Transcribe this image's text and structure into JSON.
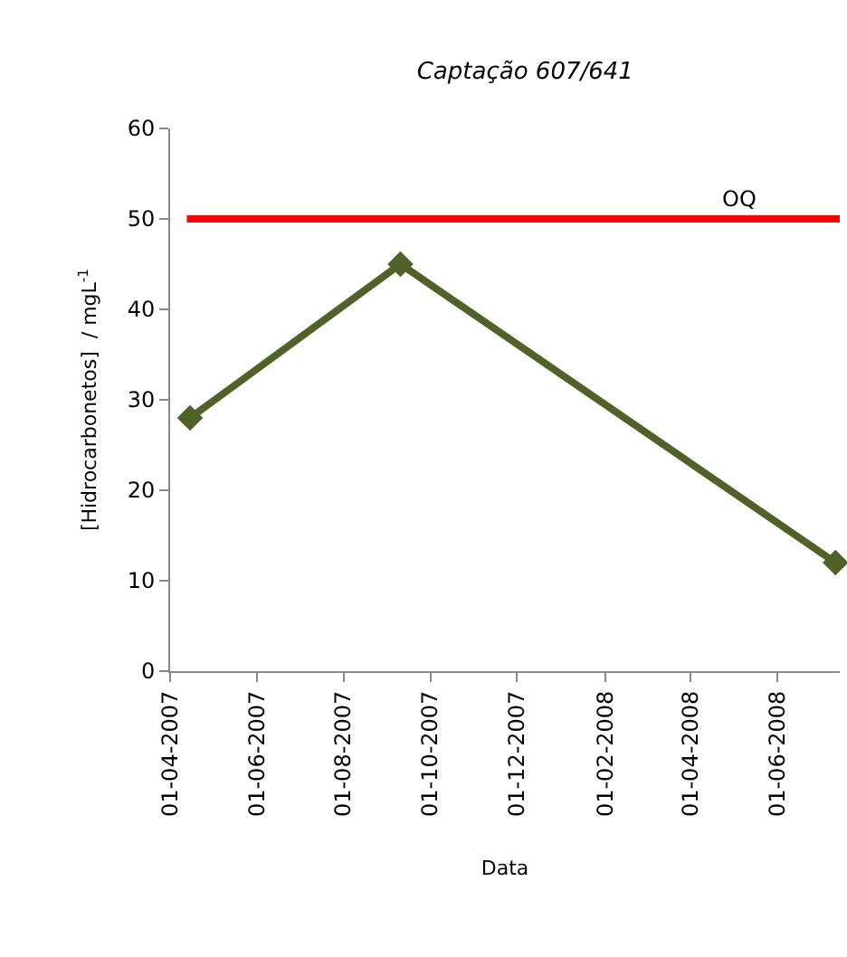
{
  "chart_data": {
    "type": "line",
    "title": "Captação 607/641",
    "xlabel": "Data",
    "ylabel": "[Hidrocarbonetos]  / mgL$^{-1}$",
    "x": [
      "2007-04-15",
      "2007-09-10",
      "2008-07-12"
    ],
    "series": [
      {
        "color": "#4f6228",
        "values": [
          28,
          45,
          12
        ]
      }
    ],
    "xlim": [
      "2007-04-01",
      "2008-07-15"
    ],
    "xticks": [
      {
        "value": "2007-04-01",
        "label": "01-04-2007"
      },
      {
        "value": "2007-06-01",
        "label": "01-06-2007"
      },
      {
        "value": "2007-08-01",
        "label": "01-08-2007"
      },
      {
        "value": "2007-10-01",
        "label": "01-10-2007"
      },
      {
        "value": "2007-12-01",
        "label": "01-12-2007"
      },
      {
        "value": "2008-02-01",
        "label": "01-02-2008"
      },
      {
        "value": "2008-04-01",
        "label": "01-04-2008"
      },
      {
        "value": "2008-06-01",
        "label": "01-06-2008"
      }
    ],
    "ylim": [
      0,
      60
    ],
    "yticks": [
      0,
      10,
      20,
      30,
      40,
      50,
      60
    ],
    "ref_lines": [
      {
        "axis": "y",
        "value": 50,
        "label": "OQ",
        "color": "#ff0000"
      }
    ],
    "marker": "diamond",
    "line_style": "solid",
    "grid": false,
    "legend": false
  }
}
